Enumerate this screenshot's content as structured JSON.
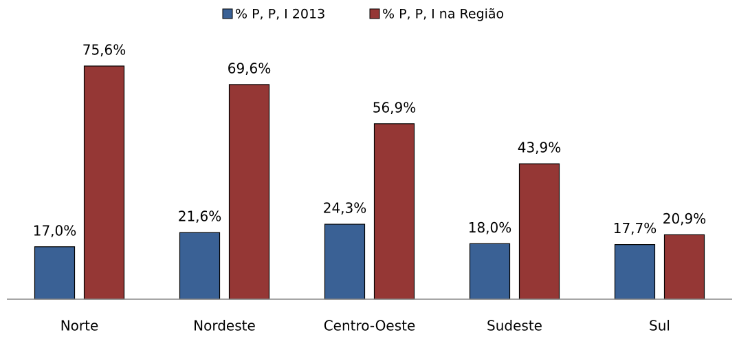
{
  "chart_data": {
    "type": "bar",
    "categories": [
      "Norte",
      "Nordeste",
      "Centro-Oeste",
      "Sudeste",
      "Sul"
    ],
    "series": [
      {
        "name": "% P, P, I 2013",
        "color": "#3a6195",
        "values": [
          17.0,
          21.6,
          24.3,
          18.0,
          17.7
        ],
        "value_labels": [
          "17,0%",
          "21,6%",
          "24,3%",
          "18,0%",
          "17,7%"
        ]
      },
      {
        "name": "% P, P, I na Região",
        "color": "#953735",
        "values": [
          75.6,
          69.6,
          56.9,
          43.9,
          20.9
        ],
        "value_labels": [
          "75,6%",
          "69,6%",
          "56,9%",
          "43,9%",
          "20,9%"
        ]
      }
    ],
    "legend": "top"
  }
}
